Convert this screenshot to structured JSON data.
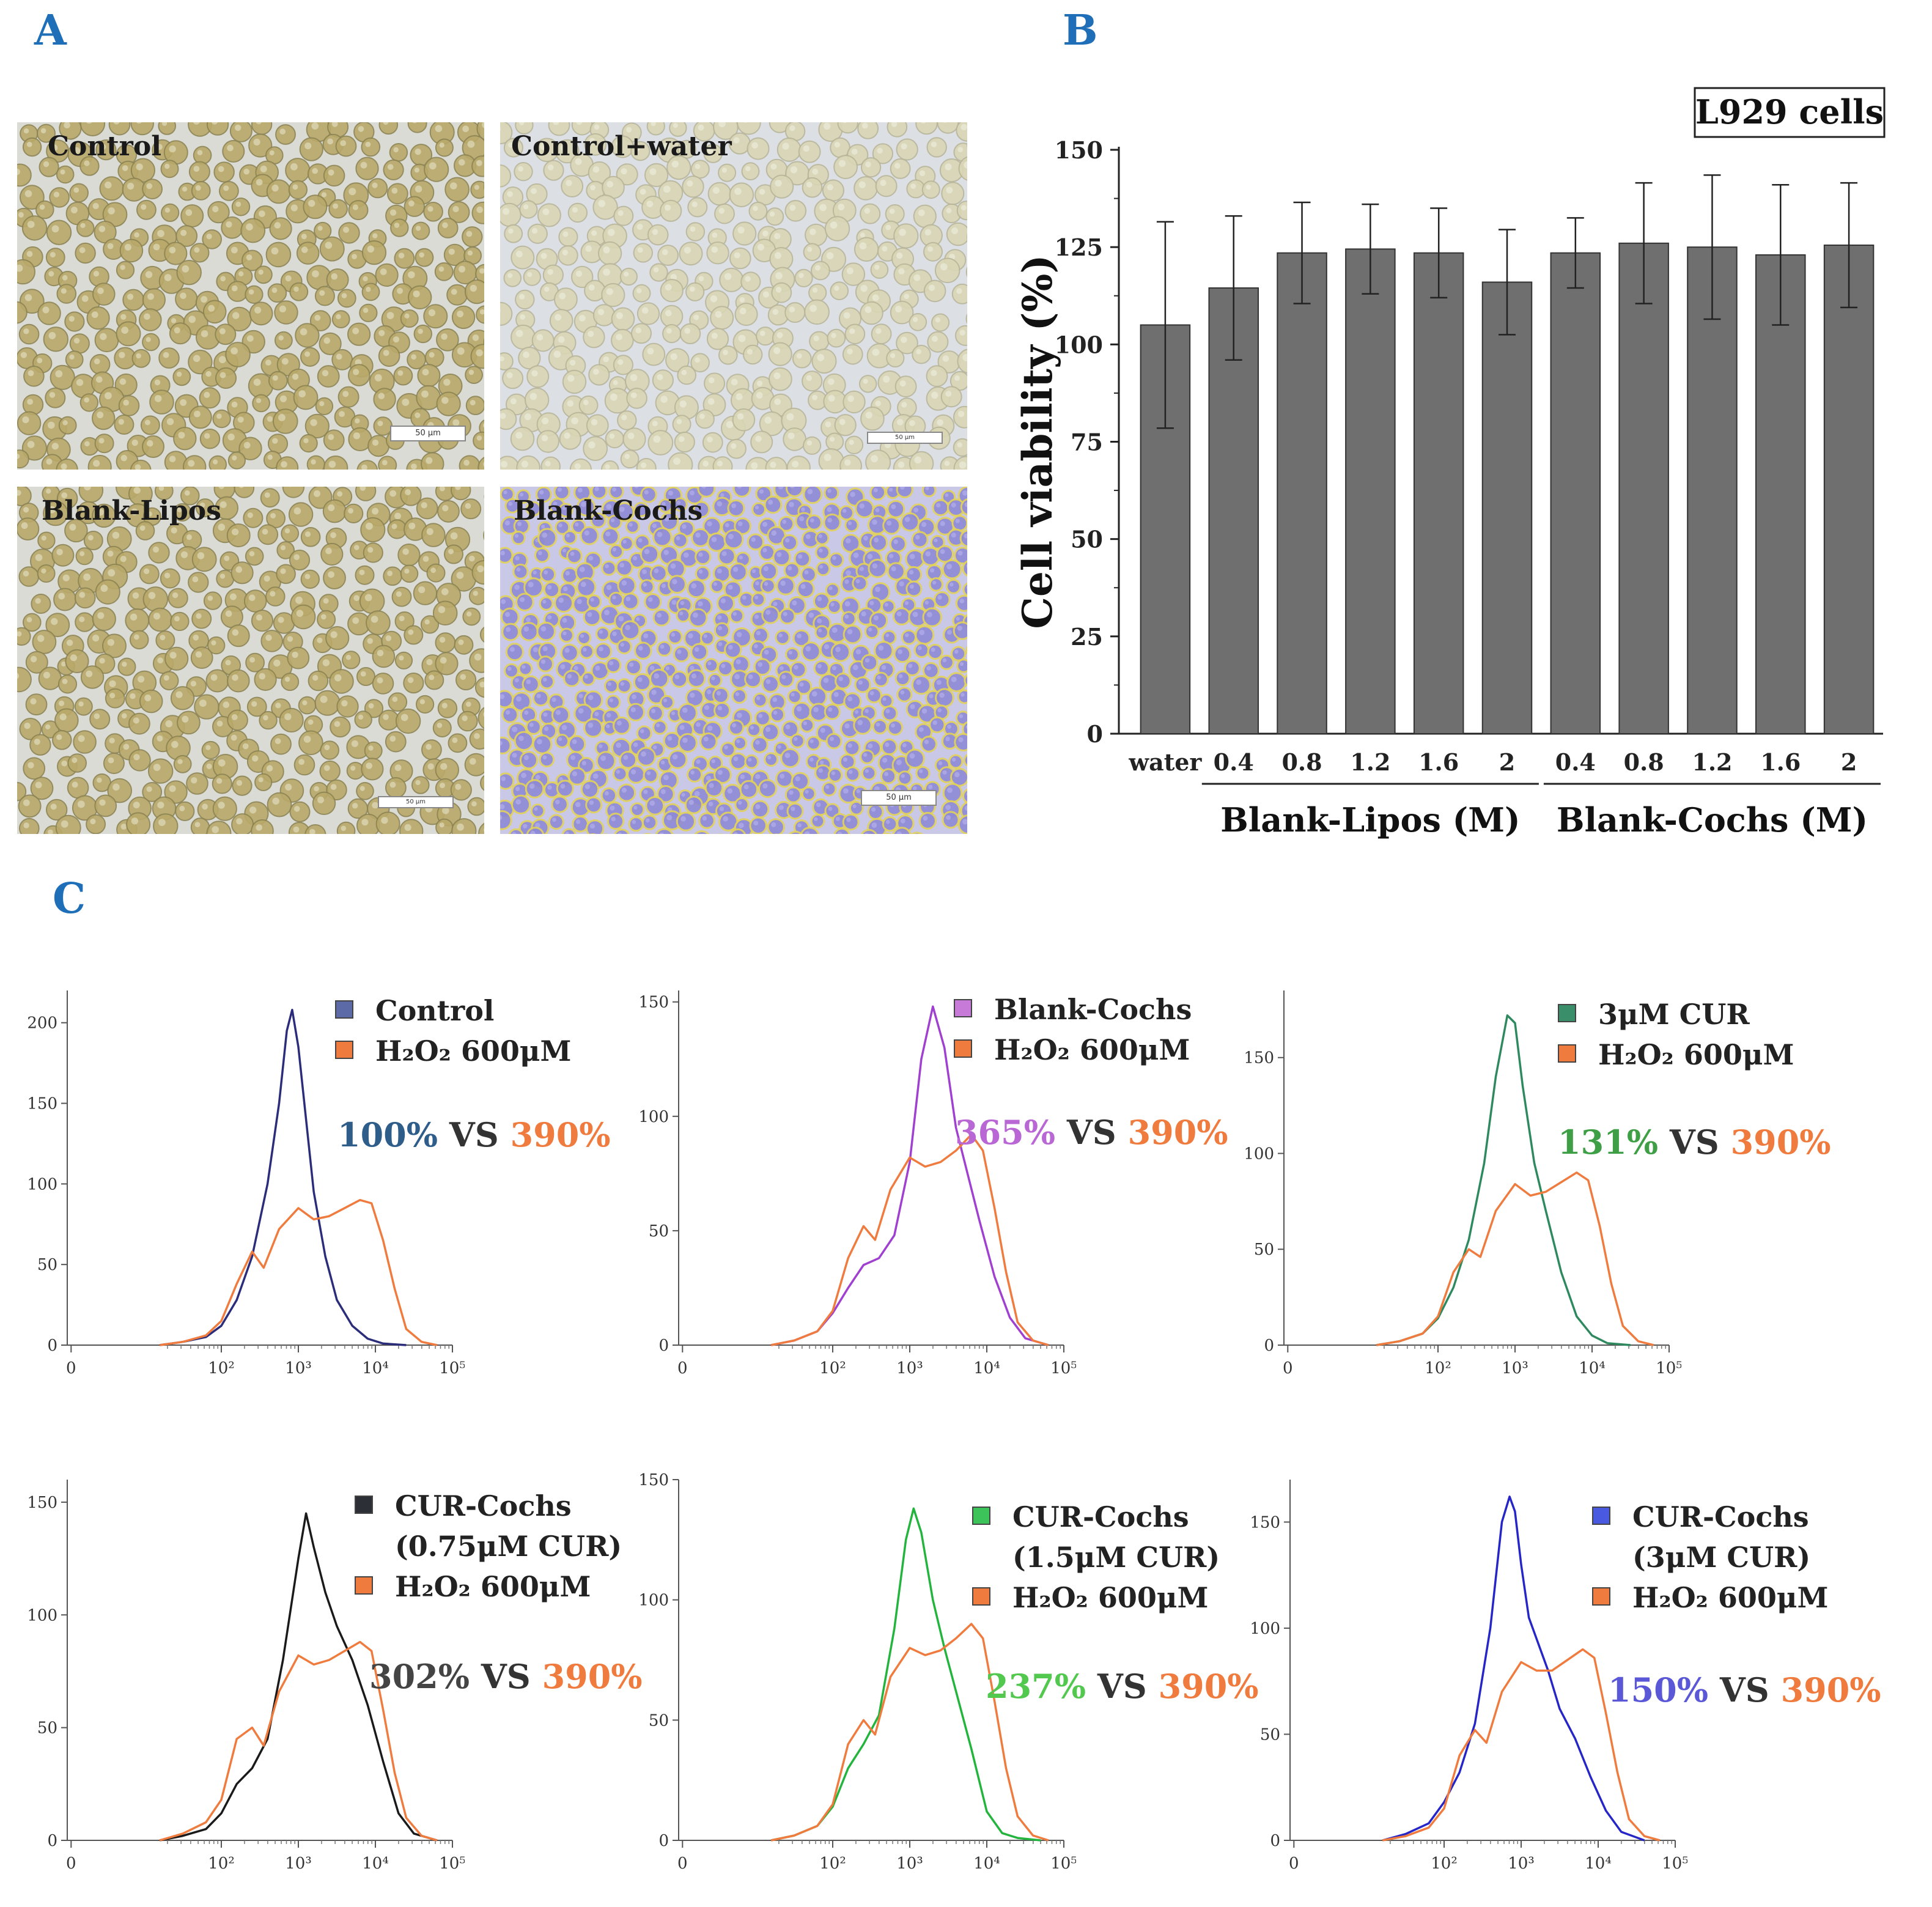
{
  "panel_letters": {
    "a": "A",
    "b": "B",
    "c": "C"
  },
  "panel_a": {
    "images": [
      {
        "label": "Control",
        "scale_bar": "50 μm",
        "palette": "yellow"
      },
      {
        "label": "Control+water",
        "scale_bar": "50 μm",
        "palette": "pale"
      },
      {
        "label": "Blank-Lipos",
        "scale_bar": "50 μm",
        "palette": "yellow"
      },
      {
        "label": "Blank-Cochs",
        "scale_bar": "50 μm",
        "palette": "purple"
      }
    ]
  },
  "chart_data": [
    {
      "type": "bar",
      "panel": "B",
      "inset_label": "L929 cells",
      "ylabel": "Cell viability (%)",
      "ylim": [
        0,
        150
      ],
      "yticks": [
        0,
        25,
        50,
        75,
        100,
        125,
        150
      ],
      "categories": [
        "water",
        "0.4",
        "0.8",
        "1.2",
        "1.6",
        "2",
        "0.4",
        "0.8",
        "1.2",
        "1.6",
        "2"
      ],
      "values": [
        105,
        114.5,
        123.5,
        124.5,
        123.5,
        116,
        123.5,
        126,
        125,
        123,
        125.5
      ],
      "errors": [
        26.5,
        18.5,
        13,
        11.5,
        11.5,
        13.5,
        9,
        15.5,
        18.5,
        18,
        16
      ],
      "groups": [
        {
          "label": "Blank-Lipos (M)",
          "from": 1,
          "to": 5
        },
        {
          "label": "Blank-Cochs (M)",
          "from": 6,
          "to": 10
        }
      ],
      "bar_color": "#6f6f6f"
    },
    {
      "type": "line",
      "panel": "C",
      "subplot": 1,
      "xscale": "log",
      "xlim": [
        0,
        100000
      ],
      "xticks": [
        "0",
        "10²",
        "10³",
        "10⁴",
        "10⁵"
      ],
      "ylim": [
        0,
        220
      ],
      "yticks": [
        0,
        50,
        100,
        150,
        200
      ],
      "series": [
        {
          "name": "Control",
          "color": "#2b2d7a",
          "swatch": "#5c6aa8",
          "x": [
            1.2,
            1.5,
            1.8,
            2.0,
            2.2,
            2.4,
            2.6,
            2.75,
            2.85,
            2.92,
            3.0,
            3.1,
            3.2,
            3.35,
            3.5,
            3.7,
            3.9,
            4.1,
            4.4
          ],
          "y": [
            0,
            2,
            5,
            12,
            28,
            55,
            100,
            150,
            195,
            208,
            185,
            140,
            95,
            55,
            28,
            12,
            4,
            1,
            0
          ]
        },
        {
          "name": "H₂O₂ 600μM",
          "color": "#ef7b3e",
          "swatch": "#ef7b3e",
          "x": [
            1.2,
            1.5,
            1.8,
            2.0,
            2.2,
            2.4,
            2.55,
            2.75,
            3.0,
            3.2,
            3.4,
            3.6,
            3.8,
            3.95,
            4.1,
            4.25,
            4.4,
            4.6,
            4.8
          ],
          "y": [
            0,
            2,
            6,
            15,
            38,
            58,
            48,
            72,
            85,
            78,
            80,
            85,
            90,
            88,
            65,
            35,
            10,
            2,
            0
          ]
        }
      ],
      "comparison": {
        "value": "100%",
        "value_color": "#2f5d8a",
        "vs": "VS",
        "ref": "390%"
      }
    },
    {
      "type": "line",
      "panel": "C",
      "subplot": 2,
      "xscale": "log",
      "xlim": [
        0,
        100000
      ],
      "xticks": [
        "0",
        "10²",
        "10³",
        "10⁴",
        "10⁵"
      ],
      "ylim": [
        0,
        155
      ],
      "yticks": [
        0,
        50,
        100,
        150
      ],
      "series": [
        {
          "name": "Blank-Cochs",
          "color": "#a040d0",
          "swatch": "#c87ad8",
          "x": [
            1.2,
            1.5,
            1.8,
            2.0,
            2.2,
            2.4,
            2.6,
            2.8,
            3.0,
            3.15,
            3.3,
            3.45,
            3.6,
            3.75,
            3.9,
            4.1,
            4.3,
            4.5,
            4.8
          ],
          "y": [
            0,
            2,
            6,
            14,
            25,
            35,
            38,
            48,
            80,
            125,
            148,
            130,
            95,
            75,
            55,
            30,
            12,
            3,
            0
          ]
        },
        {
          "name": "H₂O₂ 600μM",
          "color": "#ef7b3e",
          "swatch": "#ef7b3e",
          "x": [
            1.2,
            1.5,
            1.8,
            2.0,
            2.2,
            2.4,
            2.55,
            2.75,
            3.0,
            3.2,
            3.4,
            3.6,
            3.8,
            3.95,
            4.1,
            4.25,
            4.4,
            4.6,
            4.8
          ],
          "y": [
            0,
            2,
            6,
            15,
            38,
            52,
            46,
            68,
            82,
            78,
            80,
            85,
            92,
            85,
            60,
            32,
            10,
            2,
            0
          ]
        }
      ],
      "comparison": {
        "value": "365%",
        "value_color": "#b967d4",
        "vs": "VS",
        "ref": "390%"
      }
    },
    {
      "type": "line",
      "panel": "C",
      "subplot": 3,
      "xscale": "log",
      "xlim": [
        0,
        100000
      ],
      "xticks": [
        "0",
        "10²",
        "10³",
        "10⁴",
        "10⁵"
      ],
      "ylim": [
        0,
        185
      ],
      "yticks": [
        0,
        50,
        100,
        150
      ],
      "series": [
        {
          "name": "3μM CUR",
          "color": "#2e8a5e",
          "swatch": "#3a8f6a",
          "x": [
            1.2,
            1.5,
            1.8,
            2.0,
            2.2,
            2.4,
            2.6,
            2.75,
            2.9,
            3.0,
            3.1,
            3.25,
            3.4,
            3.6,
            3.8,
            4.0,
            4.2,
            4.5
          ],
          "y": [
            0,
            2,
            6,
            14,
            30,
            55,
            95,
            140,
            172,
            168,
            135,
            95,
            70,
            38,
            15,
            5,
            1,
            0
          ]
        },
        {
          "name": "H₂O₂ 600μM",
          "color": "#ef7b3e",
          "swatch": "#ef7b3e",
          "x": [
            1.2,
            1.5,
            1.8,
            2.0,
            2.2,
            2.4,
            2.55,
            2.75,
            3.0,
            3.2,
            3.4,
            3.6,
            3.8,
            3.95,
            4.1,
            4.25,
            4.4,
            4.6,
            4.8
          ],
          "y": [
            0,
            2,
            6,
            15,
            38,
            50,
            46,
            70,
            84,
            78,
            80,
            85,
            90,
            86,
            62,
            32,
            10,
            2,
            0
          ]
        }
      ],
      "comparison": {
        "value": "131%",
        "value_color": "#3f9f47",
        "vs": "VS",
        "ref": "390%"
      }
    },
    {
      "type": "line",
      "panel": "C",
      "subplot": 4,
      "xscale": "log",
      "xlim": [
        0,
        100000
      ],
      "xticks": [
        "0",
        "10²",
        "10³",
        "10⁴",
        "10⁵"
      ],
      "ylim": [
        0,
        160
      ],
      "yticks": [
        0,
        50,
        100,
        150
      ],
      "series": [
        {
          "name": "CUR-Cochs (0.75μM CUR)",
          "color": "#1a1a1a",
          "swatch": "#2c2f36",
          "x": [
            1.2,
            1.5,
            1.8,
            2.0,
            2.2,
            2.4,
            2.6,
            2.8,
            3.0,
            3.1,
            3.2,
            3.35,
            3.5,
            3.7,
            3.9,
            4.1,
            4.3,
            4.5,
            4.8
          ],
          "y": [
            0,
            2,
            5,
            12,
            25,
            32,
            45,
            80,
            125,
            145,
            130,
            110,
            95,
            80,
            60,
            35,
            12,
            3,
            0
          ]
        },
        {
          "name": "H₂O₂ 600μM",
          "color": "#ef7b3e",
          "swatch": "#ef7b3e",
          "x": [
            1.2,
            1.5,
            1.8,
            2.0,
            2.2,
            2.4,
            2.55,
            2.75,
            3.0,
            3.2,
            3.4,
            3.6,
            3.8,
            3.95,
            4.1,
            4.25,
            4.4,
            4.6,
            4.8
          ],
          "y": [
            0,
            3,
            8,
            18,
            45,
            50,
            42,
            66,
            82,
            78,
            80,
            84,
            88,
            84,
            58,
            30,
            10,
            2,
            0
          ]
        }
      ],
      "comparison": {
        "value": "302%",
        "value_color": "#444444",
        "vs": "VS",
        "ref": "390%"
      }
    },
    {
      "type": "line",
      "panel": "C",
      "subplot": 5,
      "xscale": "log",
      "xlim": [
        0,
        100000
      ],
      "xticks": [
        "0",
        "10²",
        "10³",
        "10⁴",
        "10⁵"
      ],
      "ylim": [
        0,
        150
      ],
      "yticks": [
        0,
        50,
        100,
        150
      ],
      "series": [
        {
          "name": "CUR-Cochs (1.5μM CUR)",
          "color": "#22b43c",
          "swatch": "#3cc35a",
          "x": [
            1.2,
            1.5,
            1.8,
            2.0,
            2.2,
            2.4,
            2.6,
            2.8,
            2.95,
            3.05,
            3.15,
            3.3,
            3.45,
            3.6,
            3.8,
            4.0,
            4.2,
            4.4,
            4.7
          ],
          "y": [
            0,
            2,
            6,
            14,
            30,
            40,
            52,
            88,
            125,
            138,
            128,
            100,
            80,
            62,
            38,
            12,
            3,
            1,
            0
          ]
        },
        {
          "name": "H₂O₂ 600μM",
          "color": "#ef7b3e",
          "swatch": "#ef7b3e",
          "x": [
            1.2,
            1.5,
            1.8,
            2.0,
            2.2,
            2.4,
            2.55,
            2.75,
            3.0,
            3.2,
            3.4,
            3.6,
            3.8,
            3.95,
            4.1,
            4.25,
            4.4,
            4.6,
            4.8
          ],
          "y": [
            0,
            2,
            6,
            15,
            40,
            50,
            44,
            68,
            80,
            77,
            79,
            84,
            90,
            84,
            58,
            30,
            10,
            2,
            0
          ]
        }
      ],
      "comparison": {
        "value": "237%",
        "value_color": "#52c84f",
        "vs": "VS",
        "ref": "390%"
      }
    },
    {
      "type": "line",
      "panel": "C",
      "subplot": 6,
      "xscale": "log",
      "xlim": [
        0,
        100000
      ],
      "xticks": [
        "0",
        "10²",
        "10³",
        "10⁴",
        "10⁵"
      ],
      "ylim": [
        0,
        170
      ],
      "yticks": [
        0,
        50,
        100,
        150
      ],
      "series": [
        {
          "name": "CUR-Cochs (3μM CUR)",
          "color": "#2626c8",
          "swatch": "#4a5ae0",
          "x": [
            1.2,
            1.5,
            1.8,
            2.0,
            2.2,
            2.4,
            2.6,
            2.75,
            2.85,
            2.92,
            3.0,
            3.1,
            3.2,
            3.35,
            3.5,
            3.7,
            3.9,
            4.1,
            4.3,
            4.6
          ],
          "y": [
            0,
            3,
            8,
            18,
            32,
            55,
            100,
            150,
            162,
            155,
            130,
            105,
            95,
            80,
            62,
            48,
            30,
            14,
            4,
            0
          ]
        },
        {
          "name": "H₂O₂ 600μM",
          "color": "#ef7b3e",
          "swatch": "#ef7b3e",
          "x": [
            1.2,
            1.5,
            1.8,
            2.0,
            2.2,
            2.4,
            2.55,
            2.75,
            3.0,
            3.2,
            3.4,
            3.6,
            3.8,
            3.95,
            4.1,
            4.25,
            4.4,
            4.6,
            4.8
          ],
          "y": [
            0,
            2,
            6,
            15,
            40,
            52,
            46,
            70,
            84,
            80,
            80,
            85,
            90,
            86,
            60,
            32,
            10,
            2,
            0
          ]
        }
      ],
      "comparison": {
        "value": "150%",
        "value_color": "#5a58d6",
        "vs": "VS",
        "ref": "390%"
      }
    }
  ]
}
